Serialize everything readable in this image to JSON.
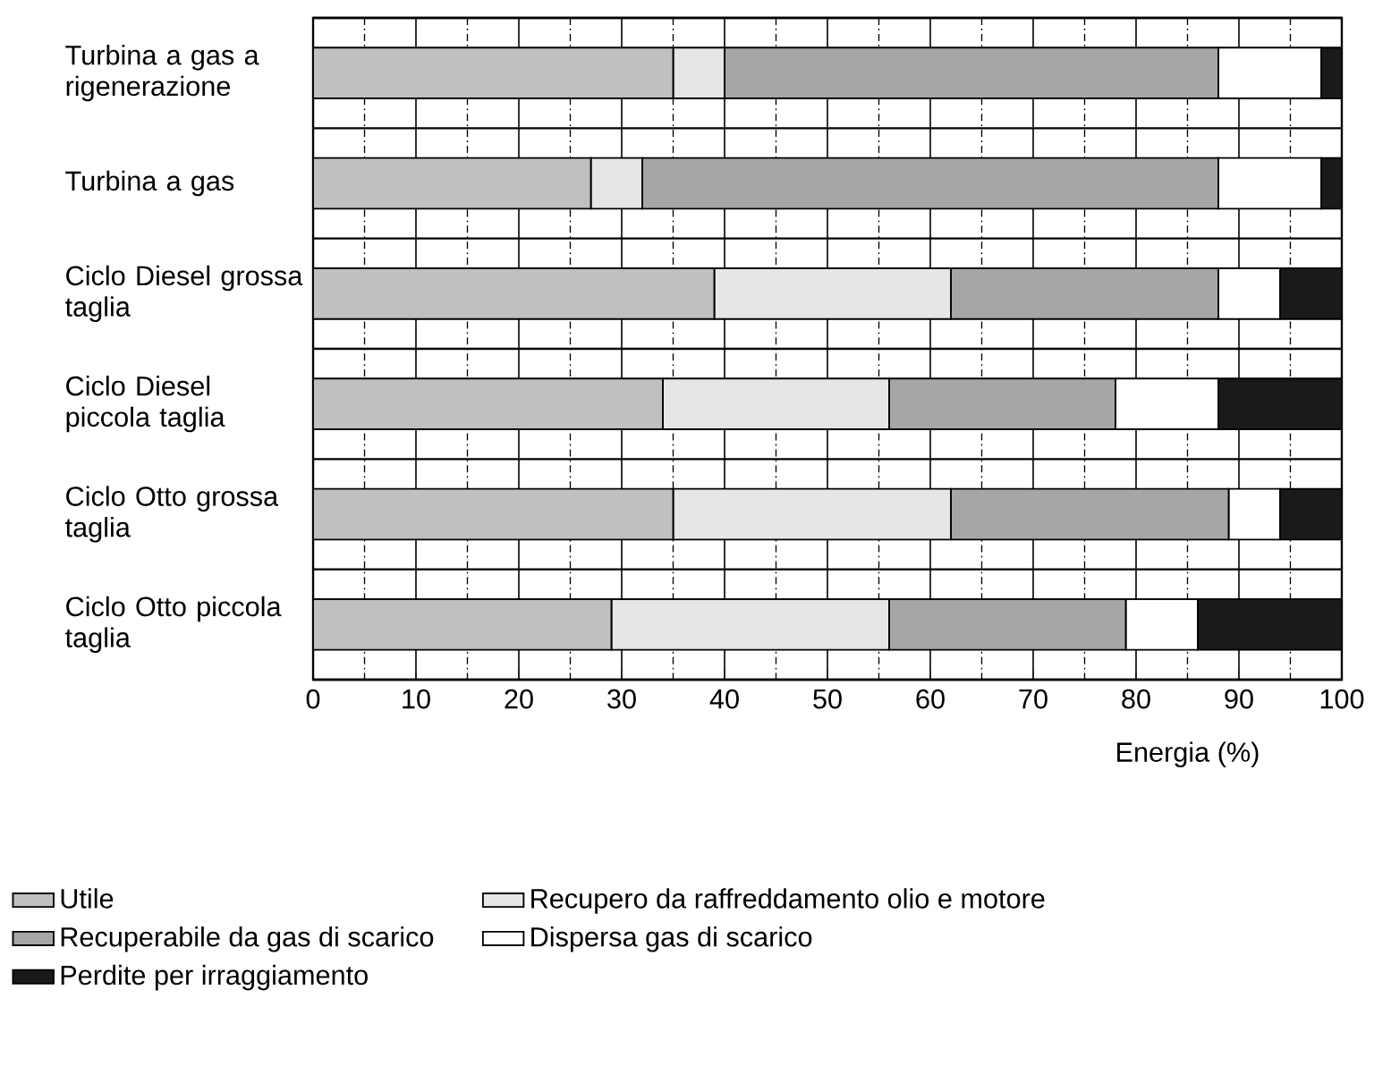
{
  "chart_data": {
    "type": "bar",
    "orientation": "horizontal",
    "stacked": true,
    "xlabel": "Energia (%)",
    "categories": [
      "Turbina a gas a rigenerazione",
      "Turbina a gas",
      "Ciclo Diesel grossa taglia",
      "Ciclo Diesel piccola taglia",
      "Ciclo Otto grossa taglia",
      "Ciclo Otto piccola taglia"
    ],
    "series": [
      {
        "name": "Utile",
        "color": "#c0c0c0",
        "values": [
          35,
          27,
          39,
          34,
          35,
          29
        ]
      },
      {
        "name": "Recupero da raffreddamento olio e motore",
        "color": "#e6e6e6",
        "values": [
          5,
          5,
          23,
          22,
          27,
          27
        ]
      },
      {
        "name": "Recuperabile da gas di scarico",
        "color": "#a6a6a6",
        "values": [
          48,
          56,
          26,
          22,
          27,
          23
        ]
      },
      {
        "name": "Dispersa gas di scarico",
        "color": "#ffffff",
        "values": [
          10,
          10,
          6,
          10,
          5,
          7
        ]
      },
      {
        "name": "Perdite per irraggiamento",
        "color": "#1a1a1a",
        "values": [
          2,
          2,
          6,
          12,
          6,
          14
        ]
      }
    ],
    "xlim": [
      0,
      100
    ],
    "xticks": [
      0,
      10,
      20,
      30,
      40,
      50,
      60,
      70,
      80,
      90,
      100
    ],
    "grid": true,
    "legend": "bottom"
  }
}
